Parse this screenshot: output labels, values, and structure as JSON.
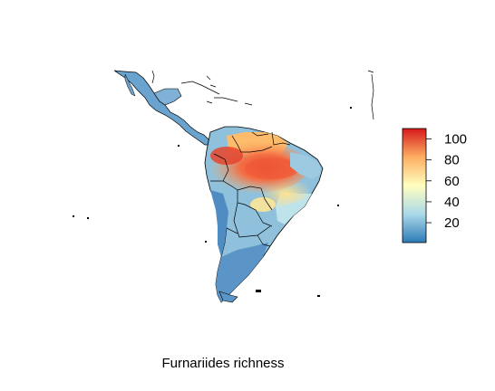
{
  "caption": "Furnariides richness",
  "legend": {
    "ticks": [
      "20",
      "40",
      "60",
      "80",
      "100"
    ],
    "tick_values": [
      20,
      40,
      60,
      80,
      100
    ],
    "range": [
      1,
      110
    ],
    "colors": [
      "#2c7bb6",
      "#abd9e9",
      "#ffffbf",
      "#fdae61",
      "#d7191c"
    ]
  }
}
